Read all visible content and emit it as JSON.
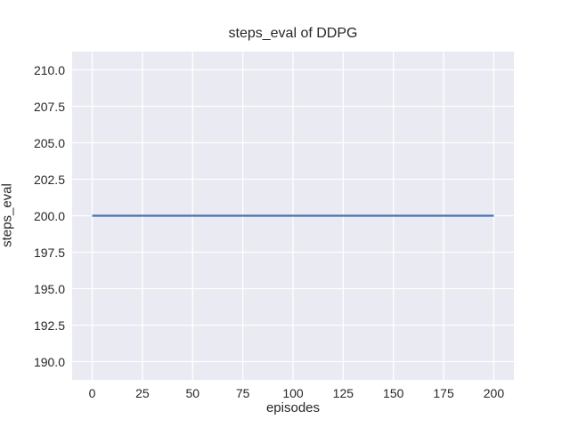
{
  "chart_data": {
    "type": "line",
    "title": "steps_eval of DDPG",
    "xlabel": "episodes",
    "ylabel": "steps_eval",
    "xlim": [
      -10,
      210
    ],
    "ylim": [
      188.75,
      211.25
    ],
    "xticks": [
      0,
      25,
      50,
      75,
      100,
      125,
      150,
      175,
      200
    ],
    "xtick_labels": [
      "0",
      "25",
      "50",
      "75",
      "100",
      "125",
      "150",
      "175",
      "200"
    ],
    "yticks": [
      190.0,
      192.5,
      195.0,
      197.5,
      200.0,
      202.5,
      205.0,
      207.5,
      210.0
    ],
    "ytick_labels": [
      "190.0",
      "192.5",
      "195.0",
      "197.5",
      "200.0",
      "202.5",
      "205.0",
      "207.5",
      "210.0"
    ],
    "grid": true,
    "legend": false,
    "plot_background": "#eaeaf2",
    "grid_color": "#ffffff",
    "figure_background": "#ffffff",
    "text_color": "#262626",
    "series": [
      {
        "name": "DDPG steps_eval",
        "color": "#4c72b0",
        "x": [
          0,
          200
        ],
        "y": [
          200,
          200
        ],
        "y_constant": 200
      }
    ]
  }
}
